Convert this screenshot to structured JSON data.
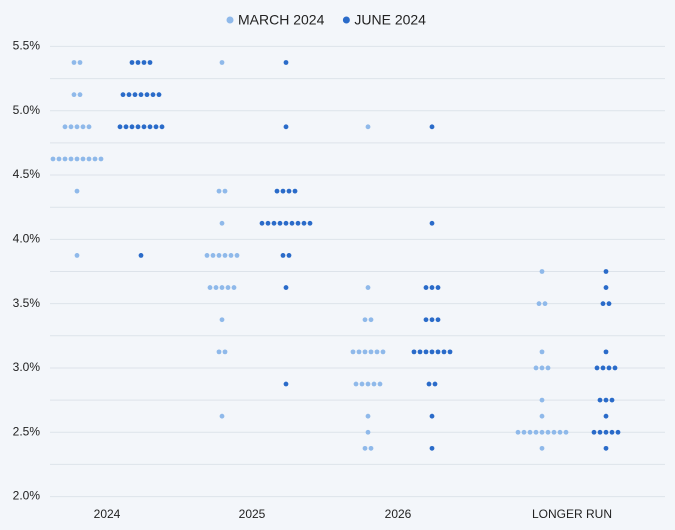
{
  "chart_data": {
    "type": "dot",
    "categories": [
      "2024",
      "2025",
      "2026",
      "LONGER RUN"
    ],
    "series": [
      {
        "name": "MARCH 2024",
        "color": "#8fb9ea",
        "values": [
          [
            5.375,
            5.375,
            5.125,
            5.125,
            4.875,
            4.875,
            4.875,
            4.875,
            4.875,
            4.625,
            4.625,
            4.625,
            4.625,
            4.625,
            4.625,
            4.625,
            4.625,
            4.625,
            4.375,
            3.875
          ],
          [
            5.375,
            4.375,
            4.375,
            4.125,
            3.875,
            3.875,
            3.875,
            3.875,
            3.875,
            3.875,
            3.625,
            3.625,
            3.625,
            3.625,
            3.625,
            3.375,
            3.125,
            3.125,
            2.625
          ],
          [
            4.875,
            3.625,
            3.375,
            3.375,
            3.125,
            3.125,
            3.125,
            3.125,
            3.125,
            3.125,
            2.875,
            2.875,
            2.875,
            2.875,
            2.875,
            2.625,
            2.5,
            2.375,
            2.375
          ],
          [
            3.75,
            3.5,
            3.5,
            3.125,
            3.0,
            3.0,
            3.0,
            2.75,
            2.625,
            2.5,
            2.5,
            2.5,
            2.5,
            2.5,
            2.5,
            2.5,
            2.5,
            2.5,
            2.375
          ]
        ]
      },
      {
        "name": "JUNE 2024",
        "color": "#2a6bc9",
        "values": [
          [
            5.375,
            5.375,
            5.375,
            5.375,
            5.125,
            5.125,
            5.125,
            5.125,
            5.125,
            5.125,
            5.125,
            4.875,
            4.875,
            4.875,
            4.875,
            4.875,
            4.875,
            4.875,
            4.875,
            3.875
          ],
          [
            5.375,
            4.875,
            4.375,
            4.375,
            4.375,
            4.375,
            4.125,
            4.125,
            4.125,
            4.125,
            4.125,
            4.125,
            4.125,
            4.125,
            4.125,
            3.875,
            3.875,
            3.625,
            2.875
          ],
          [
            4.875,
            4.125,
            3.625,
            3.625,
            3.625,
            3.375,
            3.375,
            3.375,
            3.125,
            3.125,
            3.125,
            3.125,
            3.125,
            3.125,
            3.125,
            2.875,
            2.875,
            2.625,
            2.375
          ],
          [
            3.75,
            3.625,
            3.5,
            3.5,
            3.125,
            3.0,
            3.0,
            3.0,
            3.0,
            2.75,
            2.75,
            2.75,
            2.625,
            2.5,
            2.5,
            2.5,
            2.5,
            2.5,
            2.375
          ]
        ]
      }
    ],
    "ylim": [
      1.95,
      5.55
    ],
    "yticks": [
      {
        "value": 2.0,
        "label": "2.0%"
      },
      {
        "value": 2.5,
        "label": "2.5%"
      },
      {
        "value": 3.0,
        "label": "3.0%"
      },
      {
        "value": 3.5,
        "label": "3.5%"
      },
      {
        "value": 4.0,
        "label": "4.0%"
      },
      {
        "value": 4.5,
        "label": "4.5%"
      },
      {
        "value": 5.0,
        "label": "5.0%"
      },
      {
        "value": 5.5,
        "label": "5.5%"
      }
    ],
    "grid": true,
    "legend": "top"
  }
}
